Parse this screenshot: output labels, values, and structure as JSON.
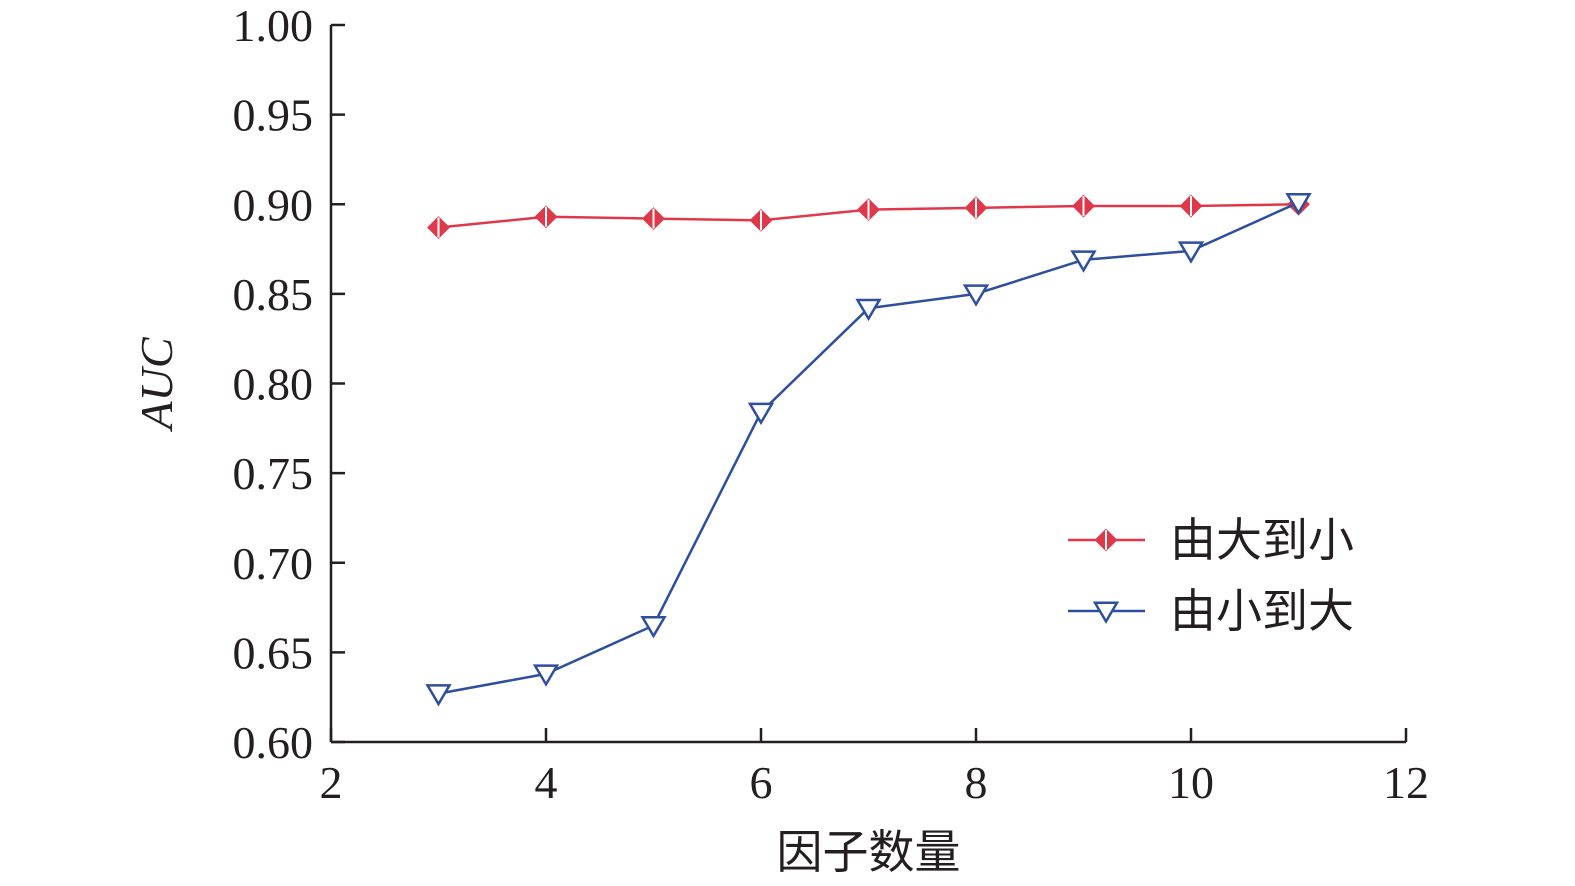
{
  "chart_data": {
    "type": "line",
    "xlabel": "因子数量",
    "ylabel": "AUC",
    "xlim": [
      2,
      12
    ],
    "ylim": [
      0.6,
      1.0
    ],
    "xticks": [
      "2",
      "4",
      "6",
      "8",
      "10",
      "12"
    ],
    "yticks": [
      "0.60",
      "0.65",
      "0.70",
      "0.75",
      "0.80",
      "0.85",
      "0.90",
      "0.95",
      "1.00"
    ],
    "grid": false,
    "legend_position": "lower-right",
    "x": [
      3,
      4,
      5,
      6,
      7,
      8,
      9,
      10,
      11
    ],
    "series": [
      {
        "name": "由大到小",
        "color": "#e0384b",
        "marker": "diamond",
        "values": [
          0.887,
          0.893,
          0.892,
          0.891,
          0.897,
          0.898,
          0.899,
          0.899,
          0.9
        ]
      },
      {
        "name": "由小到大",
        "color": "#2e4f9e",
        "marker": "triangle-down",
        "values": [
          0.627,
          0.638,
          0.665,
          0.784,
          0.842,
          0.85,
          0.869,
          0.874,
          0.901
        ]
      }
    ]
  }
}
